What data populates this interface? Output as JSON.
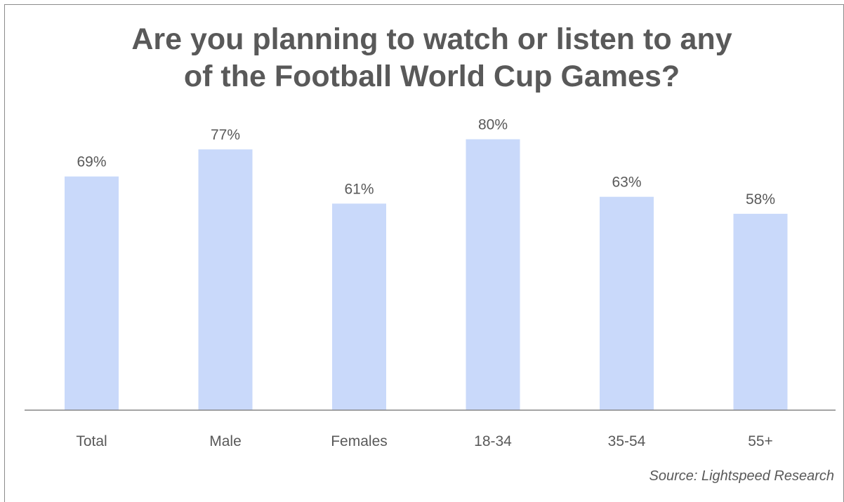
{
  "chart_data": {
    "type": "bar",
    "title_lines": [
      "Are you planning to watch or listen to any",
      "of the Football World Cup Games?"
    ],
    "categories": [
      "Total",
      "Male",
      "Females",
      "18-34",
      "35-54",
      "55+"
    ],
    "values": [
      69,
      77,
      61,
      80,
      63,
      58
    ],
    "data_labels": [
      "69%",
      "77%",
      "61%",
      "80%",
      "63%",
      "58%"
    ],
    "unit": "%",
    "ylim": [
      0,
      100
    ],
    "grid": false,
    "legend": "none",
    "bar_color": "#c9d9fa",
    "baseline_color": "#868686",
    "text_color": "#595959"
  },
  "source": "Source: Lightspeed Research"
}
